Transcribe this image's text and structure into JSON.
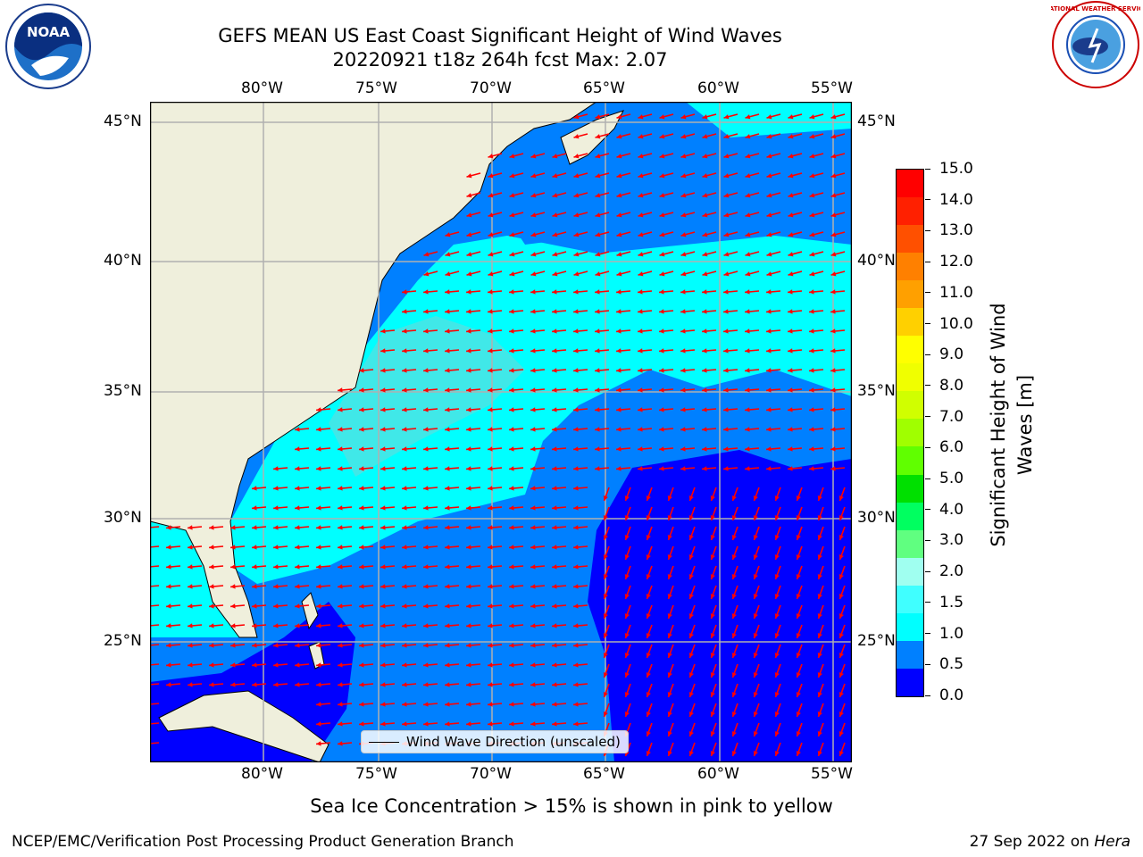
{
  "header": {
    "title_line1": "GEFS MEAN US East Coast Significant Height of Wind Waves",
    "title_line2": "20220921 t18z 264h fcst   Max: 2.07",
    "logo_left_text": "NOAA",
    "logo_right_text": "NATIONAL WEATHER SERVICE"
  },
  "map": {
    "top_lon_labels": [
      "80°W",
      "75°W",
      "70°W",
      "65°W",
      "60°W",
      "55°W"
    ],
    "bottom_lon_labels": [
      "80°W",
      "75°W",
      "70°W",
      "65°W",
      "60°W",
      "55°W"
    ],
    "left_lat_labels": [
      "45°N",
      "40°N",
      "35°N",
      "30°N",
      "25°N"
    ],
    "right_lat_labels": [
      "45°N",
      "40°N",
      "35°N",
      "30°N",
      "25°N"
    ],
    "legend_label": "Wind Wave Direction (unscaled)",
    "colors": {
      "land": "#efefdc",
      "wave_0_0_5": "#0000ff",
      "wave_0_5_1_0": "#0080ff",
      "wave_1_0_1_5": "#00ffff",
      "wave_1_5_2_0": "#40e8e8",
      "vector": "#ff0000",
      "grid": "#b0b0b0"
    }
  },
  "colorbar": {
    "title": "Significant Height of Wind Waves [m]",
    "title_line1": "Significant Height of Wind",
    "title_line2": "Waves [m]",
    "ticks": [
      "15.0",
      "14.0",
      "13.0",
      "12.0",
      "11.0",
      "10.0",
      "9.0",
      "8.0",
      "7.0",
      "6.0",
      "5.0",
      "4.0",
      "3.0",
      "2.0",
      "1.5",
      "1.0",
      "0.5",
      "0.0"
    ],
    "colors": [
      "#ff0000",
      "#ff2000",
      "#ff5000",
      "#ff8000",
      "#ffa000",
      "#ffd000",
      "#ffff00",
      "#f0ff00",
      "#d0ff00",
      "#a0ff00",
      "#60ff00",
      "#00e000",
      "#00ff60",
      "#60ff80",
      "#a0fff0",
      "#40ffff",
      "#00ffff",
      "#0080ff",
      "#0000ff"
    ]
  },
  "footer": {
    "sea_ice_note": "Sea Ice Concentration > 15% is shown in pink to yellow",
    "branch": "NCEP/EMC/Verification Post Processing Product Generation Branch",
    "date_prefix": "27 Sep 2022 on ",
    "machine": "Hera"
  }
}
